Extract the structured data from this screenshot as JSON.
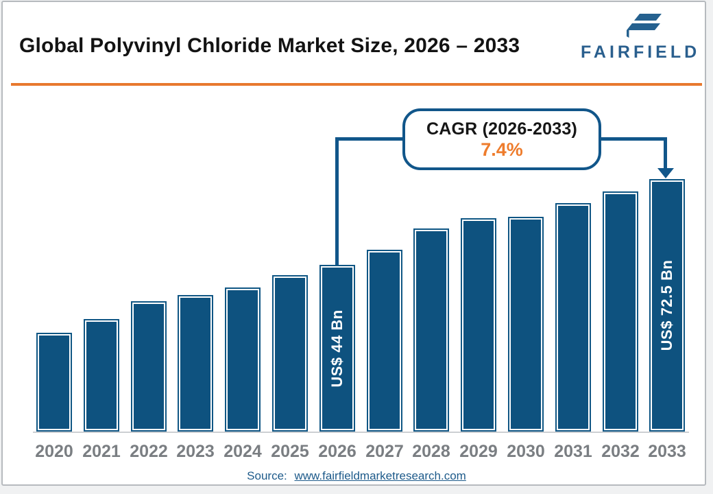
{
  "header": {
    "title": "Global Polyvinyl Chloride Market Size, 2026 – 2033",
    "brand": "FAIRFIELD",
    "logo_icon": "fairfield-f-icon"
  },
  "callout": {
    "label": "CAGR (2026-2033)",
    "value": "7.4%"
  },
  "chart_data": {
    "type": "bar",
    "title": "Global Polyvinyl Chloride Market Size, 2026 – 2033",
    "unit": "US$ Bn",
    "categories": [
      "2020",
      "2021",
      "2022",
      "2023",
      "2024",
      "2025",
      "2026",
      "2027",
      "2028",
      "2029",
      "2030",
      "2031",
      "2032",
      "2033"
    ],
    "values": [
      21.5,
      26,
      32,
      34,
      36.5,
      40.5,
      44,
      49,
      56,
      59.5,
      60,
      64.5,
      68.5,
      72.5
    ],
    "labeled_bars": {
      "2026": "US$ 44 Bn",
      "2033": "US$ 72.5 Bn"
    },
    "cagr": {
      "label": "CAGR (2026-2033)",
      "value": "7.4%",
      "from_year": "2026",
      "to_year": "2033"
    },
    "xlabel": "",
    "ylabel": "",
    "grid": false,
    "legend": "none",
    "bar_color": "#0E527F"
  },
  "footer": {
    "source_label": "Source:",
    "source_url": "www.fairfieldmarketresearch.com"
  },
  "colors": {
    "bar_fill": "#0E527F",
    "bar_border": "#0F5684",
    "bar_inner_line": "#FFFFFF",
    "connector_blue": "#11568A",
    "accent_orange": "#EE7C2C",
    "divider_orange": "#E8792E",
    "logo_blue": "#2A5F8E",
    "title_color": "#131313",
    "axis_label_gray": "#7A7E82",
    "baseline_gray": "#CCCFD2",
    "source_blue": "#1D5A8A",
    "page_border_gray": "#B6BABE"
  }
}
